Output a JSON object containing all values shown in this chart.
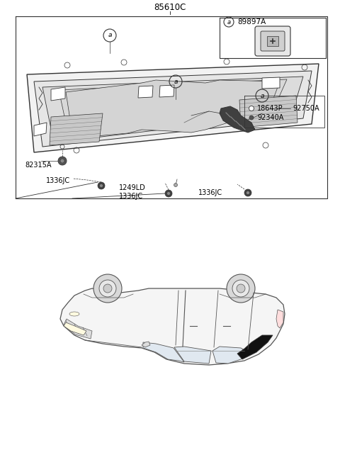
{
  "title": "85610C",
  "bg_color": "#ffffff",
  "line_color": "#555555",
  "dark_color": "#333333",
  "text_color": "#000000",
  "fig_width": 4.8,
  "fig_height": 6.35,
  "dpi": 100,
  "parts": {
    "inset_part": "89897A",
    "p1_name": "18643P",
    "p2_name": "92750A",
    "p3_name": "92340A",
    "p4_name": "82315A",
    "p5_name": "1336JC",
    "p6_name": "1336JC",
    "p7_name": "1249LD",
    "p8_name": "1336JC"
  }
}
